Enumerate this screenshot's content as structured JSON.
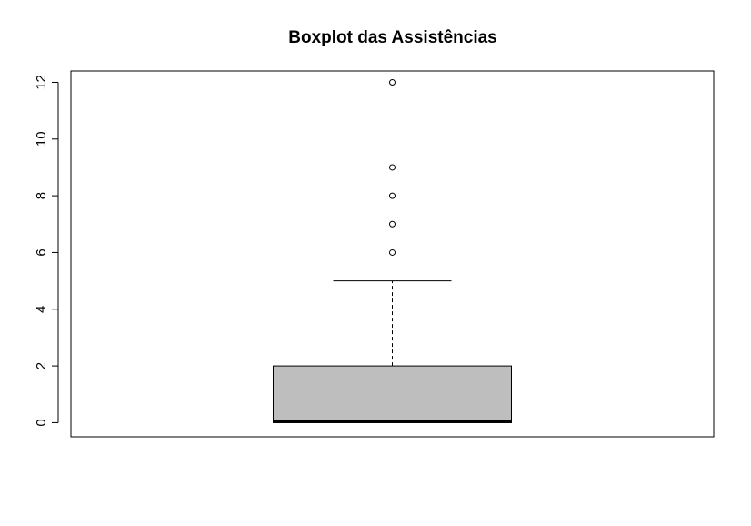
{
  "chart_data": {
    "type": "boxplot",
    "title": "Boxplot das Assistências",
    "xlabel": "",
    "ylabel": "",
    "ylim": [
      -0.5,
      12.4
    ],
    "y_ticks": [
      0,
      2,
      4,
      6,
      8,
      10,
      12
    ],
    "grid": false,
    "box_color": "#bebebe",
    "min": 0,
    "q1": 0,
    "median": 0,
    "q3": 2,
    "whisker_high": 5,
    "outliers": [
      6,
      7,
      8,
      9,
      12
    ]
  }
}
